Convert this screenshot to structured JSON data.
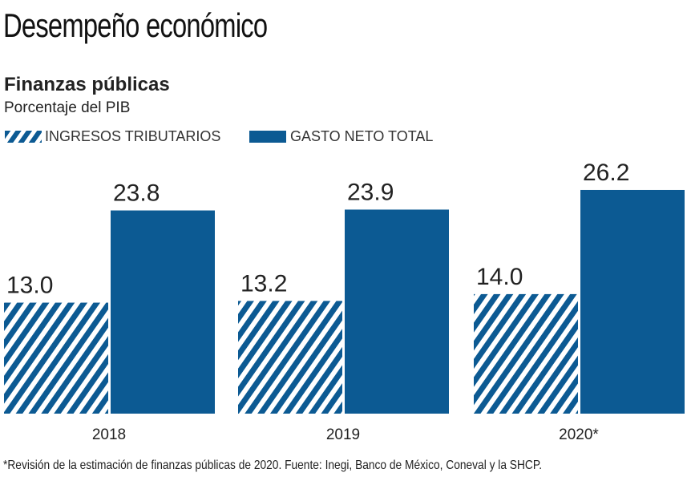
{
  "header": {
    "title": "Desempeño económico",
    "subtitle": "Finanzas públicas",
    "unit": "Porcentaje del PIB"
  },
  "footnote": "*Revisión de la estimación de finanzas públicas de 2020. Fuente: Inegi, Banco de México, Coneval y la SHCP.",
  "chart_data": {
    "type": "bar",
    "title": "Finanzas públicas",
    "ylabel": "Porcentaje del PIB",
    "categories": [
      "2018",
      "2019",
      "2020*"
    ],
    "series": [
      {
        "name": "INGRESOS TRIBUTARIOS",
        "values": [
          13.0,
          13.2,
          14.0
        ],
        "labels": [
          "13.0",
          "13.2",
          "14.0"
        ],
        "pattern": "hatched",
        "color": "#0c5a93"
      },
      {
        "name": "GASTO NETO TOTAL",
        "values": [
          23.8,
          23.9,
          26.2
        ],
        "labels": [
          "23.8",
          "23.9",
          "26.2"
        ],
        "pattern": "solid",
        "color": "#0c5a93"
      }
    ],
    "ylim": [
      0,
      27
    ],
    "grid": false,
    "legend": "top-left"
  }
}
